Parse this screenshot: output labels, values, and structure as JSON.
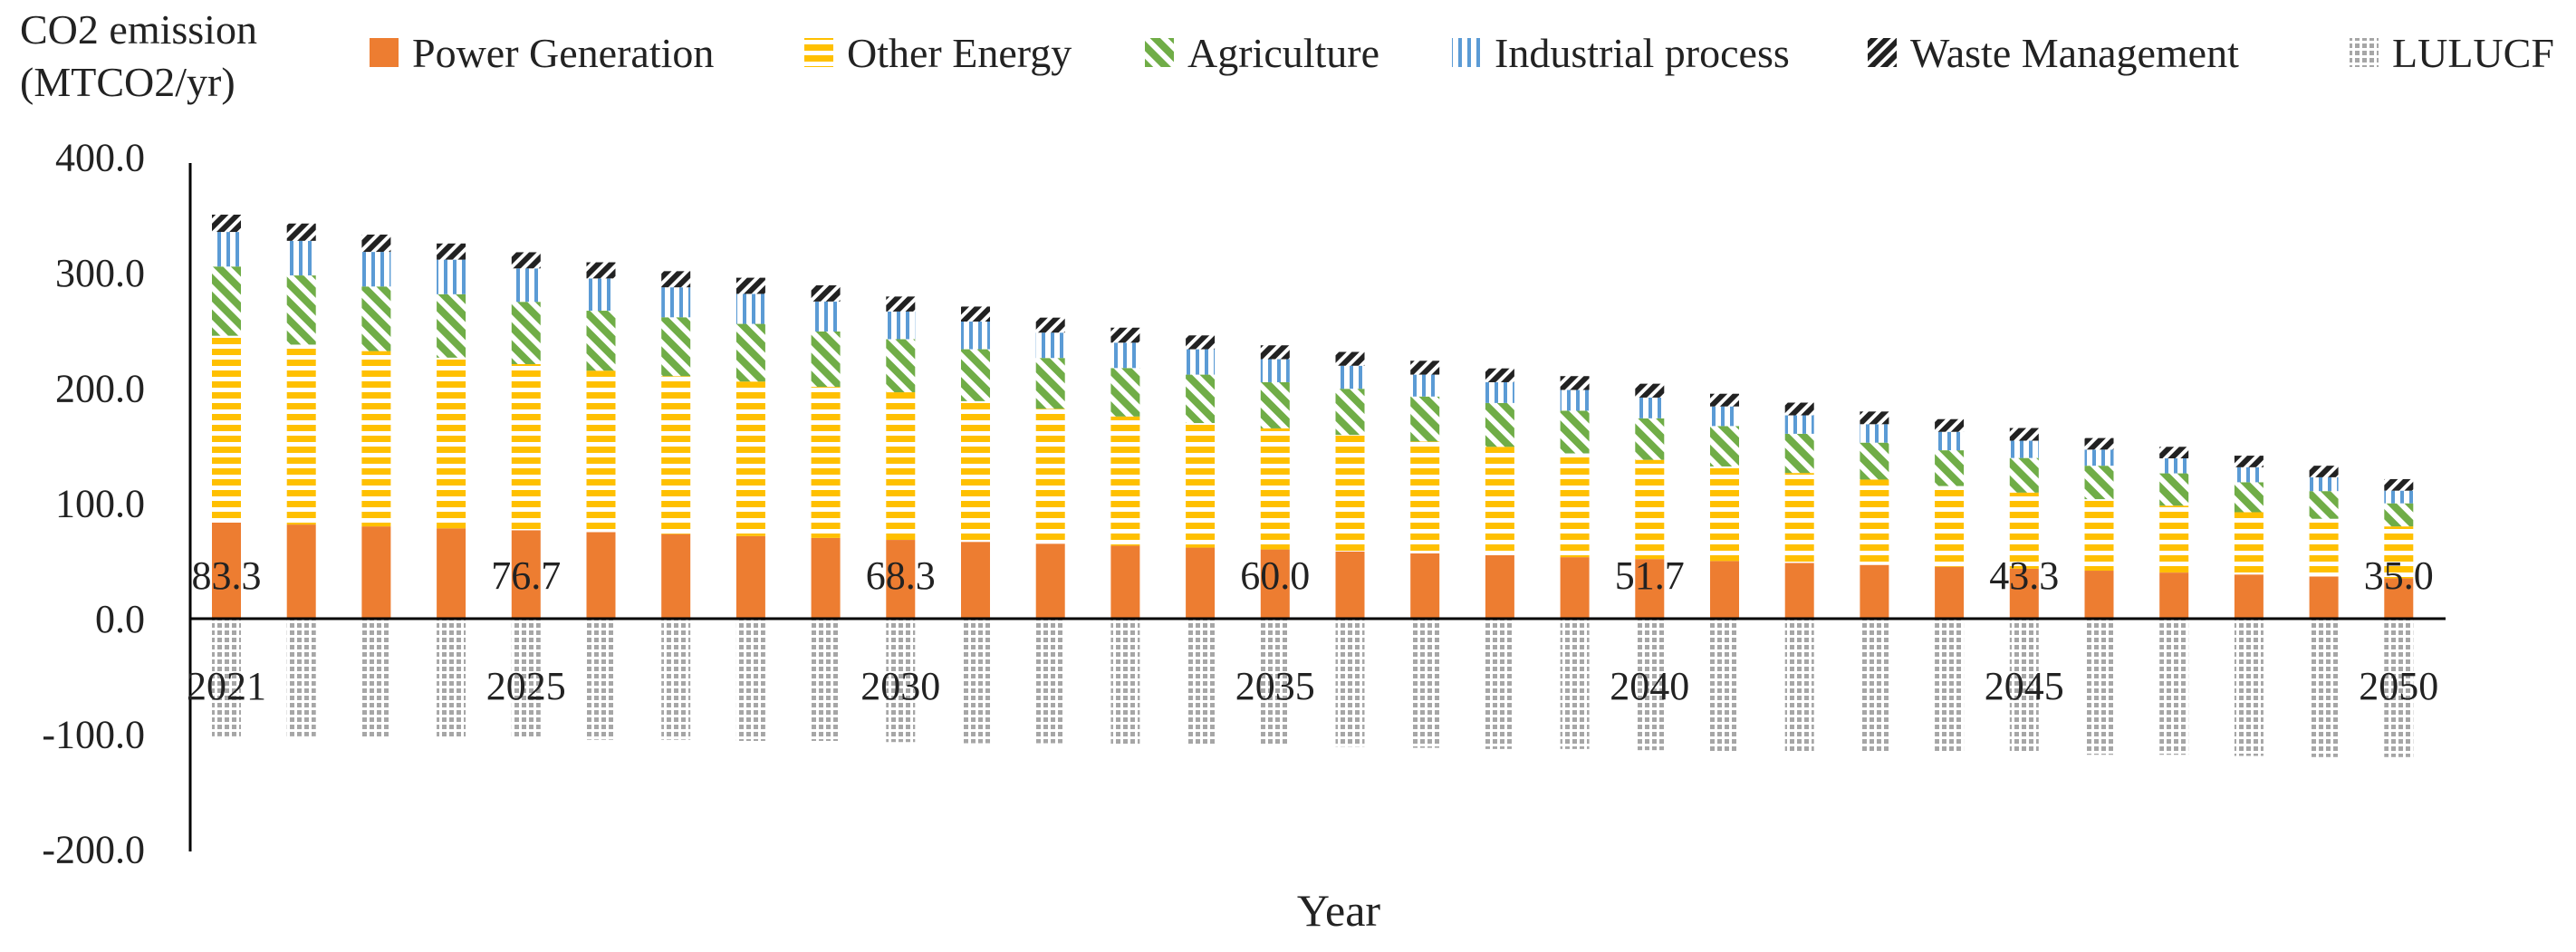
{
  "chart_data": {
    "type": "bar",
    "stacked": true,
    "ylabel_lines": [
      "CO2 emission",
      "(MTCO2/yr)"
    ],
    "xlabel": "Year",
    "ylim": [
      -200,
      400
    ],
    "yticks": [
      "400.0",
      "300.0",
      "200.0",
      "100.0",
      "0.0",
      "-100.0",
      "-200.0"
    ],
    "ytick_values": [
      400,
      300,
      200,
      100,
      0,
      -100,
      -200
    ],
    "years": [
      2021,
      2022,
      2023,
      2024,
      2025,
      2026,
      2027,
      2028,
      2029,
      2030,
      2031,
      2032,
      2033,
      2034,
      2035,
      2036,
      2037,
      2038,
      2039,
      2040,
      2041,
      2042,
      2043,
      2044,
      2045,
      2046,
      2047,
      2048,
      2049,
      2050
    ],
    "year_labels": [
      {
        "index": 0,
        "text": "2021"
      },
      {
        "index": 4,
        "text": "2025"
      },
      {
        "index": 9,
        "text": "2030"
      },
      {
        "index": 14,
        "text": "2035"
      },
      {
        "index": 19,
        "text": "2040"
      },
      {
        "index": 24,
        "text": "2045"
      },
      {
        "index": 29,
        "text": "2050"
      }
    ],
    "value_labels": [
      {
        "index": 0,
        "text": "83.3"
      },
      {
        "index": 4,
        "text": "76.7"
      },
      {
        "index": 9,
        "text": "68.3"
      },
      {
        "index": 14,
        "text": "60.0"
      },
      {
        "index": 19,
        "text": "51.7"
      },
      {
        "index": 24,
        "text": "43.3"
      },
      {
        "index": 29,
        "text": "35.0"
      }
    ],
    "series": [
      {
        "name": "Power Generation",
        "key": "power",
        "color": "#ED7D31",
        "values": [
          83.3,
          81.6,
          80.0,
          78.3,
          76.7,
          75.0,
          73.3,
          71.6,
          70.0,
          68.3,
          66.6,
          65.0,
          63.3,
          61.6,
          60.0,
          58.3,
          56.6,
          55.0,
          53.3,
          51.7,
          50.0,
          48.3,
          46.6,
          45.0,
          43.3,
          41.6,
          40.0,
          38.3,
          36.6,
          35.0
        ]
      },
      {
        "name": "Other Energy",
        "key": "energy",
        "color": "#FFC000",
        "values": [
          162,
          156,
          152,
          148,
          144,
          140,
          137,
          134,
          131,
          128,
          122,
          117,
          112,
          108,
          105,
          101,
          97,
          94,
          90,
          86,
          82,
          78,
          74,
          70,
          66,
          62,
          58,
          54,
          50,
          45
        ]
      },
      {
        "name": "Agriculture",
        "key": "agri",
        "color": "#70AD47",
        "values": [
          60,
          60,
          56,
          55,
          54,
          52,
          51,
          50,
          48,
          46,
          45,
          44,
          42,
          42,
          40,
          40,
          39,
          38,
          37,
          36,
          35,
          34,
          32,
          31,
          30,
          29,
          28,
          26,
          24,
          20
        ]
      },
      {
        "name": "Industrial process",
        "key": "indus",
        "color": "#5B9BD5",
        "values": [
          30,
          30,
          30,
          30,
          29,
          28,
          26,
          26,
          26,
          24,
          24,
          22,
          22,
          22,
          20,
          20,
          19,
          18,
          18,
          18,
          17,
          16,
          16,
          16,
          15,
          14,
          13,
          13,
          12,
          11
        ]
      },
      {
        "name": "Waste Management",
        "key": "waste",
        "color": "#222222",
        "values": [
          15,
          15,
          15,
          14,
          14,
          14,
          14,
          14,
          14,
          13,
          13,
          13,
          13,
          12,
          12,
          12,
          12,
          12,
          12,
          12,
          11,
          11,
          11,
          11,
          11,
          10,
          10,
          10,
          10,
          10
        ]
      },
      {
        "name": "LULUCF",
        "key": "lulucf",
        "color": "#A6A6A6",
        "values": [
          -102,
          -102,
          -103,
          -104,
          -104,
          -105,
          -105,
          -106,
          -106,
          -107,
          -108,
          -108,
          -109,
          -110,
          -110,
          -111,
          -112,
          -113,
          -113,
          -114,
          -115,
          -115,
          -116,
          -116,
          -117,
          -118,
          -118,
          -119,
          -120,
          -120
        ]
      }
    ]
  }
}
